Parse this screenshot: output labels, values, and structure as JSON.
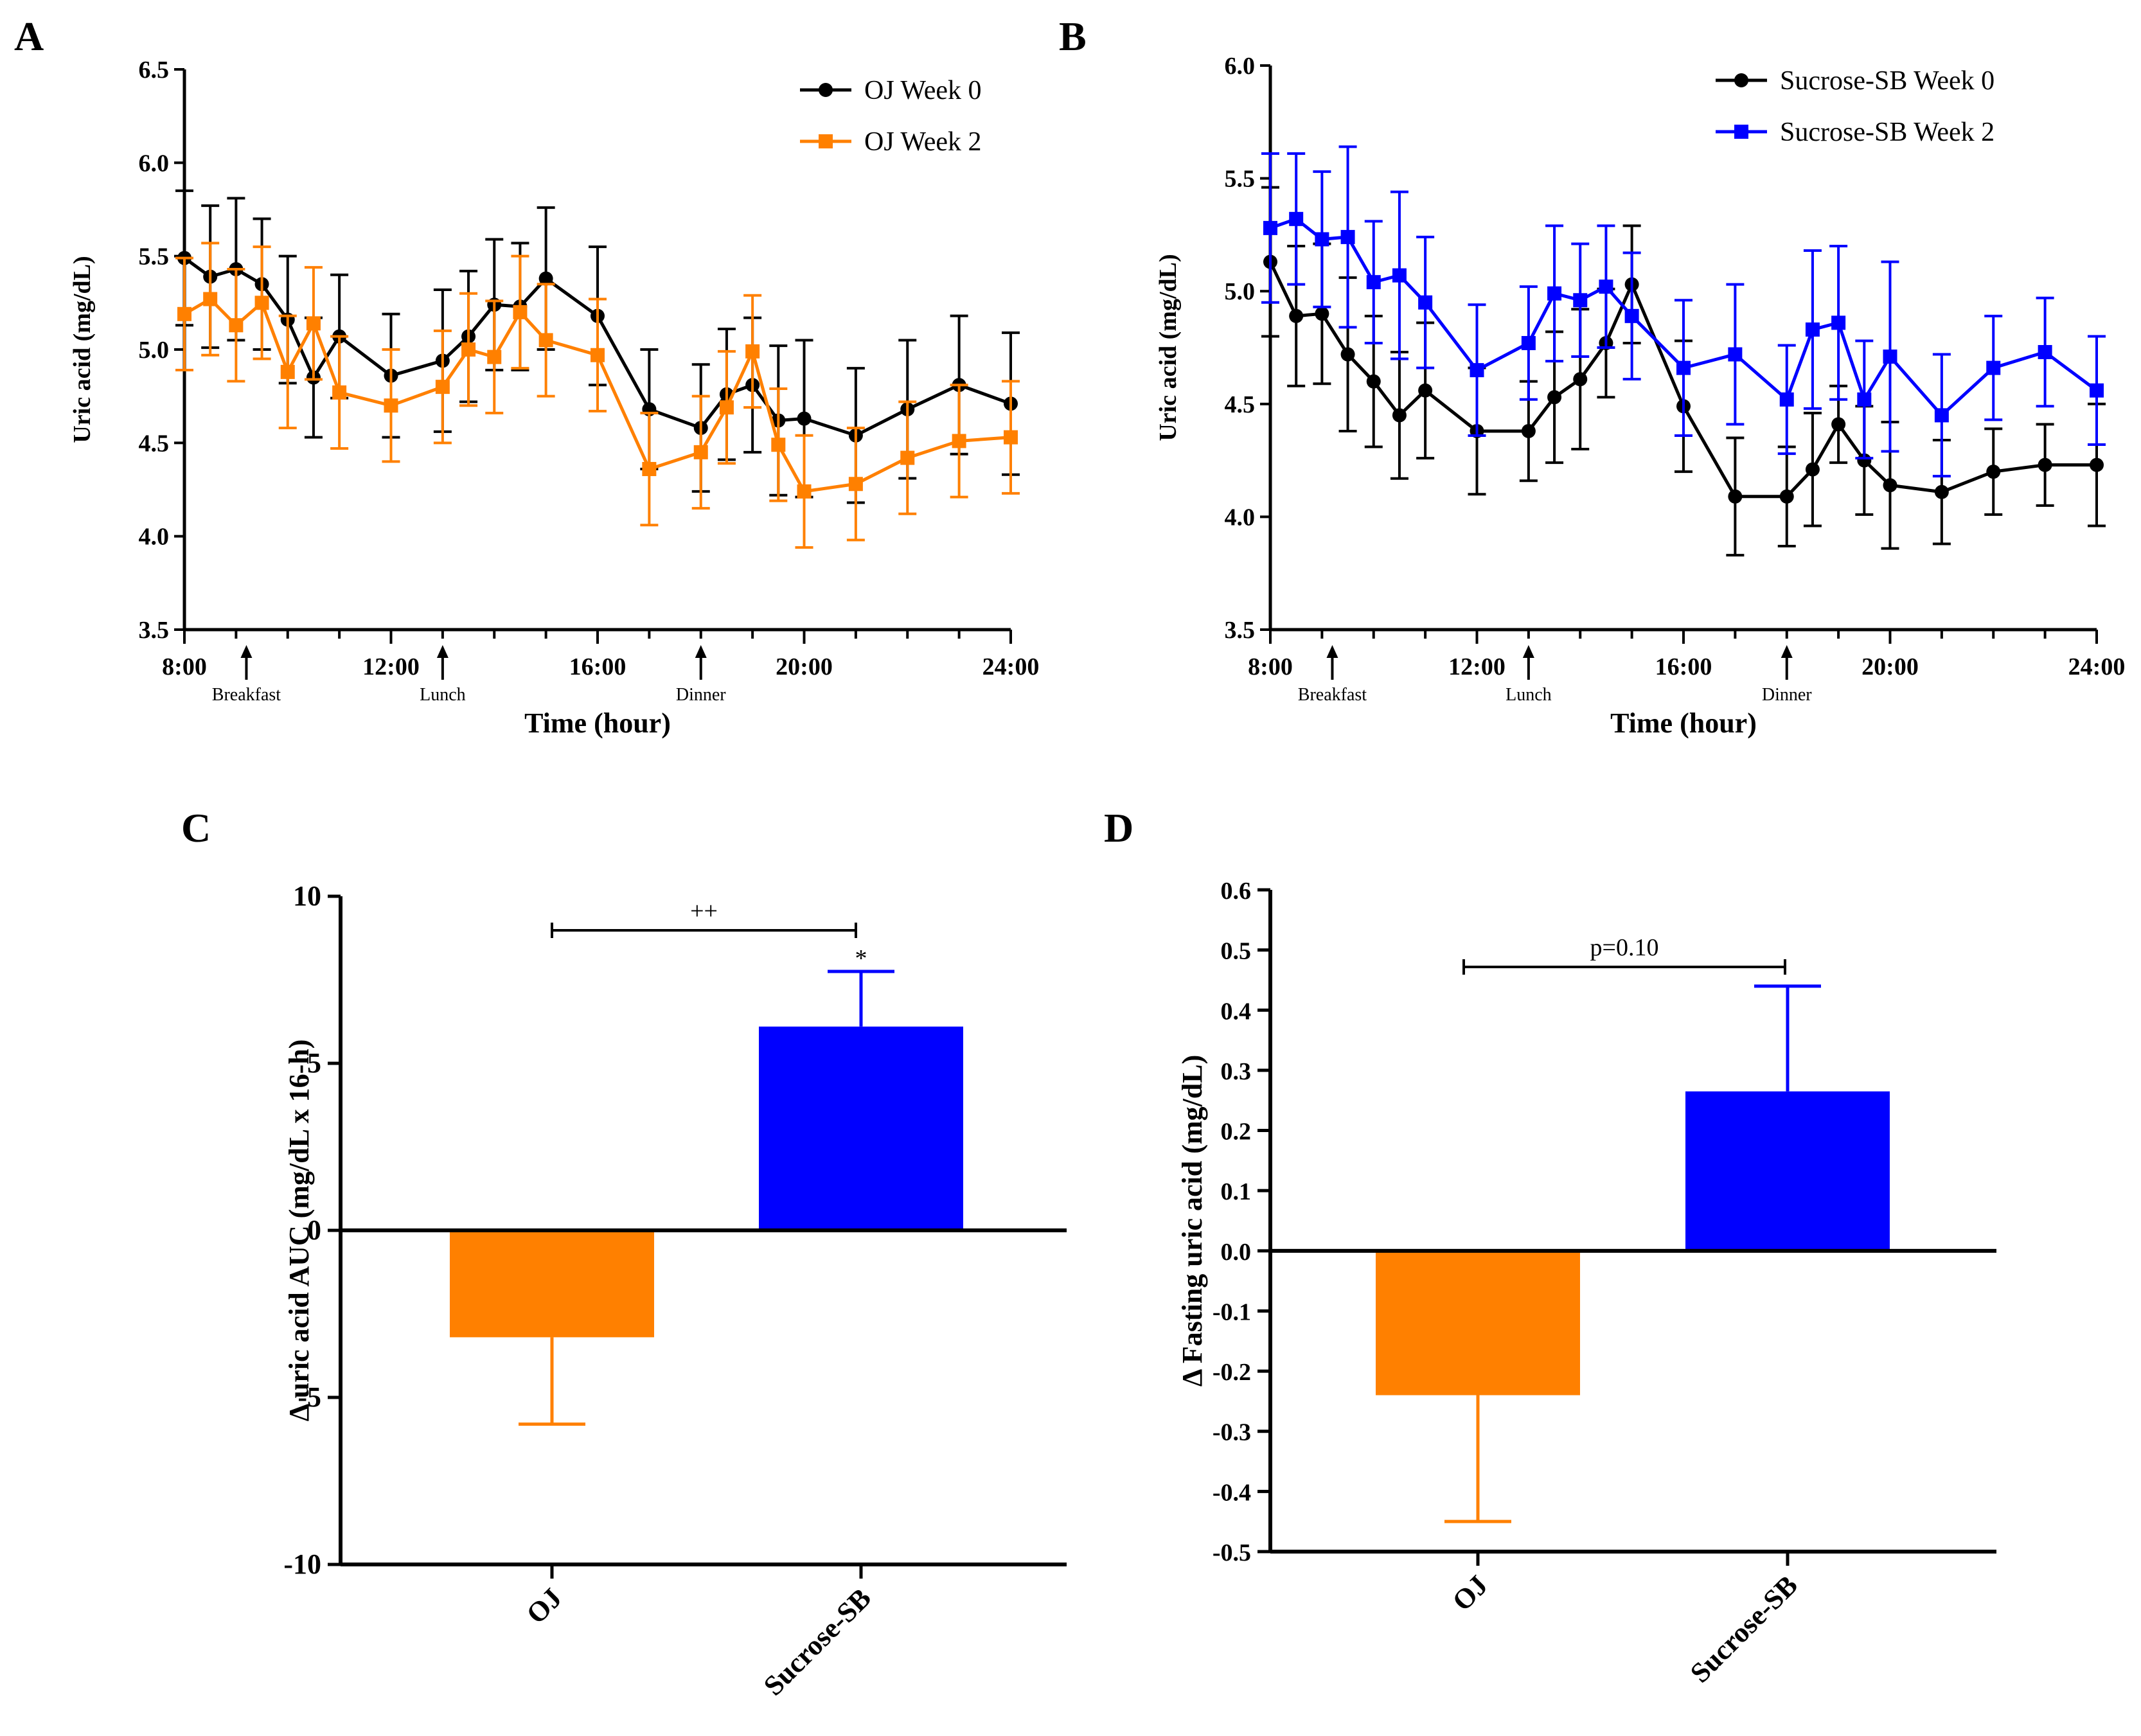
{
  "colors": {
    "black": "#000000",
    "orange": "#ff8000",
    "blue": "#0000ff"
  },
  "chart_data": [
    {
      "panel": "A",
      "type": "line",
      "ylabel": "Uric acid (mg/dL)",
      "xlabel": "Time (hour)",
      "xlim": [
        8,
        24
      ],
      "ylim": [
        3.5,
        6.5
      ],
      "yticks": [
        3.5,
        4.0,
        4.5,
        5.0,
        5.5,
        6.0,
        6.5
      ],
      "ytick_labels": [
        "3.5",
        "4.0",
        "4.5",
        "5.0",
        "5.5",
        "6.0",
        "6.5"
      ],
      "xticks": [
        8,
        12,
        16,
        20,
        24
      ],
      "xtick_labels": [
        "8:00",
        "12:00",
        "16:00",
        "20:00",
        "24:00"
      ],
      "meals": [
        {
          "label": "Breakfast",
          "x": 9.2
        },
        {
          "label": "Lunch",
          "x": 13
        },
        {
          "label": "Dinner",
          "x": 18
        }
      ],
      "series": [
        {
          "name": "OJ Week 0",
          "color": "#000000",
          "marker": "circle",
          "x": [
            8,
            8.5,
            9,
            9.5,
            10,
            10.5,
            11,
            12,
            13,
            13.5,
            14,
            14.5,
            15,
            16,
            17,
            18,
            18.5,
            19,
            19.5,
            20,
            21,
            22,
            23,
            24
          ],
          "y": [
            5.49,
            5.39,
            5.43,
            5.35,
            5.16,
            4.85,
            5.07,
            4.86,
            4.94,
            5.07,
            5.24,
            5.23,
            5.38,
            5.18,
            4.68,
            4.58,
            4.76,
            4.81,
            4.62,
            4.63,
            4.54,
            4.68,
            4.81,
            4.71
          ],
          "err": [
            0.36,
            0.38,
            0.38,
            0.35,
            0.34,
            0.32,
            0.33,
            0.33,
            0.38,
            0.35,
            0.35,
            0.34,
            0.38,
            0.37,
            0.32,
            0.34,
            0.35,
            0.36,
            0.4,
            0.42,
            0.36,
            0.37,
            0.37,
            0.38
          ]
        },
        {
          "name": "OJ Week 2",
          "color": "#ff8000",
          "marker": "square",
          "x": [
            8,
            8.5,
            9,
            9.5,
            10,
            10.5,
            11,
            12,
            13,
            13.5,
            14,
            14.5,
            15,
            16,
            17,
            18,
            18.5,
            19,
            19.5,
            20,
            21,
            22,
            23,
            24
          ],
          "y": [
            5.19,
            5.27,
            5.13,
            5.25,
            4.88,
            5.14,
            4.77,
            4.7,
            4.8,
            5.0,
            4.96,
            5.2,
            5.05,
            4.97,
            4.36,
            4.45,
            4.69,
            4.99,
            4.49,
            4.24,
            4.28,
            4.42,
            4.51,
            4.53
          ]
        }
      ]
    },
    {
      "panel": "B",
      "type": "line",
      "ylabel": "Uric acid (mg/dL)",
      "xlabel": "Time (hour)",
      "xlim": [
        8,
        24
      ],
      "ylim": [
        3.5,
        6.0
      ],
      "yticks": [
        3.5,
        4.0,
        4.5,
        5.0,
        5.5,
        6.0
      ],
      "ytick_labels": [
        "3.5",
        "4.0",
        "4.5",
        "5.0",
        "5.5",
        "6.0"
      ],
      "xticks": [
        8,
        12,
        16,
        20,
        24
      ],
      "xtick_labels": [
        "8:00",
        "12:00",
        "16:00",
        "20:00",
        "24:00"
      ],
      "meals": [
        {
          "label": "Breakfast",
          "x": 9.2
        },
        {
          "label": "Lunch",
          "x": 13
        },
        {
          "label": "Dinner",
          "x": 18
        }
      ],
      "series": [
        {
          "name": "Sucrose-SB Week 0",
          "color": "#000000",
          "marker": "circle",
          "x": [
            8,
            8.5,
            9,
            9.5,
            10,
            10.5,
            11,
            12,
            13,
            13.5,
            14,
            14.5,
            15,
            16,
            17,
            18,
            18.5,
            19,
            19.5,
            20,
            21,
            22,
            23,
            24
          ],
          "y": [
            5.13,
            4.89,
            4.9,
            4.72,
            4.6,
            4.45,
            4.56,
            4.38,
            4.38,
            4.53,
            4.61,
            4.77,
            5.03,
            4.49,
            4.09,
            4.09,
            4.21,
            4.41,
            4.25,
            4.14,
            4.11,
            4.2,
            4.23,
            4.23
          ],
          "err": [
            0.33,
            0.31,
            0.31,
            0.34,
            0.29,
            0.28,
            0.3,
            0.28,
            0.22,
            0.29,
            0.31,
            0.24,
            0.26,
            0.29,
            0.26,
            0.22,
            0.25,
            0.17,
            0.24,
            0.28,
            0.23,
            0.19,
            0.18,
            0.27
          ]
        },
        {
          "name": "Sucrose-SB Week 2",
          "color": "#0000ff",
          "marker": "square",
          "x": [
            8,
            8.5,
            9,
            9.5,
            10,
            10.5,
            11,
            12,
            13,
            13.5,
            14,
            14.5,
            15,
            16,
            17,
            18,
            18.5,
            19,
            19.5,
            20,
            21,
            22,
            23,
            24
          ],
          "y": [
            5.28,
            5.32,
            5.23,
            5.24,
            5.04,
            5.07,
            4.95,
            4.65,
            4.77,
            4.99,
            4.96,
            5.02,
            4.89,
            4.66,
            4.72,
            4.52,
            4.83,
            4.86,
            4.52,
            4.71,
            4.45,
            4.66,
            4.73,
            4.56
          ],
          "err": [
            0.33,
            0.29,
            0.3,
            0.4,
            0.27,
            0.37,
            0.29,
            0.29,
            0.25,
            0.3,
            0.25,
            0.27,
            0.28,
            0.3,
            0.31,
            0.24,
            0.35,
            0.34,
            0.26,
            0.42,
            0.27,
            0.23,
            0.24,
            0.24
          ]
        }
      ]
    },
    {
      "panel": "C",
      "type": "bar",
      "ylabel": "Δ uric acid AUC (mg/dL x 16-h)",
      "ylim": [
        -10,
        10
      ],
      "yticks": [
        -10,
        -5,
        0,
        5,
        10
      ],
      "ytick_labels": [
        "-10",
        "-5",
        "0",
        "5",
        "10"
      ],
      "categories": [
        "OJ",
        "Sucrose-SB"
      ],
      "values": [
        -3.2,
        6.1
      ],
      "errors": [
        2.6,
        1.65
      ],
      "bar_colors": [
        "#ff8000",
        "#0000ff"
      ],
      "significance": {
        "bracket_label": "++",
        "bar_marker": "*"
      }
    },
    {
      "panel": "D",
      "type": "bar",
      "ylabel": "Δ Fasting uric acid (mg/dL)",
      "ylim": [
        -0.5,
        0.6
      ],
      "yticks": [
        -0.5,
        -0.4,
        -0.3,
        -0.2,
        -0.1,
        0.0,
        0.1,
        0.2,
        0.3,
        0.4,
        0.5,
        0.6
      ],
      "ytick_labels": [
        "-0.5",
        "-0.4",
        "-0.3",
        "-0.2",
        "-0.1",
        "0.0",
        "0.1",
        "0.2",
        "0.3",
        "0.4",
        "0.5",
        "0.6"
      ],
      "categories": [
        "OJ",
        "Sucrose-SB"
      ],
      "values": [
        -0.24,
        0.265
      ],
      "errors": [
        0.21,
        0.175
      ],
      "bar_colors": [
        "#ff8000",
        "#0000ff"
      ],
      "significance": {
        "bracket_label": "p=0.10"
      }
    }
  ]
}
